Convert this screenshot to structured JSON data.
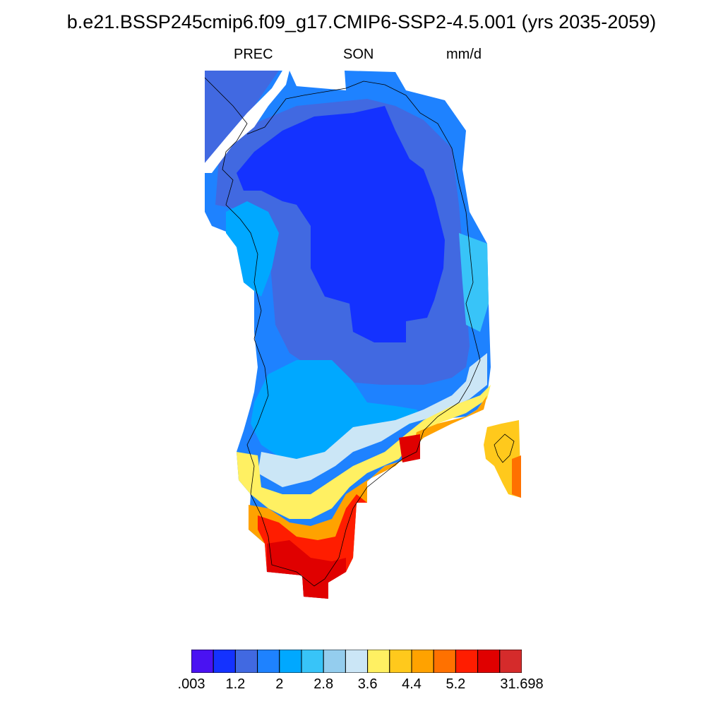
{
  "header": {
    "title": "b.e21.BSSP245cmip6.f09_g17.CMIP6-SSP2-4.5.001 (yrs 2035-2059)",
    "variable": "PREC",
    "season": "SON",
    "units": "mm/d"
  },
  "colorbar": {
    "colors": [
      "#4a12f2",
      "#1432ff",
      "#4169e1",
      "#1e82ff",
      "#00a8ff",
      "#38c4f8",
      "#94cdee",
      "#cbe6f6",
      "#fff062",
      "#ffc91c",
      "#ffa200",
      "#ff7100",
      "#ff1d00",
      "#e00000",
      "#d52b2b"
    ],
    "labels": [
      ".003",
      "1.2",
      "2",
      "2.8",
      "3.6",
      "4.4",
      "5.2",
      "31.698"
    ],
    "label_boundaries": [
      0,
      2,
      4,
      6,
      8,
      10,
      12,
      14
    ]
  }
}
